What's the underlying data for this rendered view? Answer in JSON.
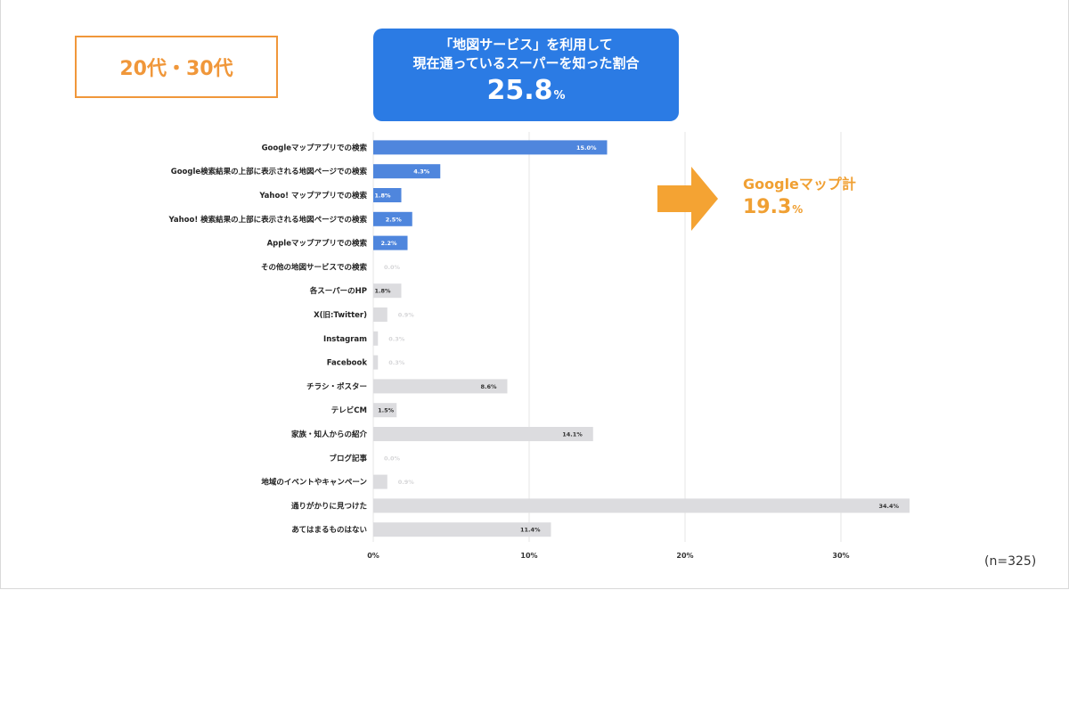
{
  "header": {
    "age_label": "20代・30代",
    "headline_line1": "「地図サービス」を利用して",
    "headline_line2": "現在通っているスーパーを知った割合",
    "headline_value": "25.8",
    "headline_unit": "%"
  },
  "callout": {
    "label": "Googleマップ計",
    "value": "19.3",
    "unit": "%"
  },
  "sample_size": "(n=325)",
  "colors": {
    "highlight_bar": "#4f86dd",
    "other_bar": "#dcdcdf",
    "accent_orange": "#f0973a",
    "headline_bg": "#2b7be4",
    "grid": "#e6e6e6"
  },
  "chart_data": {
    "type": "bar",
    "orientation": "horizontal",
    "categories": [
      "Googleマップアプリでの検索",
      "Google検索結果の上部に表示される地図ページでの検索",
      "Yahoo! マップアプリでの検索",
      "Yahoo! 検索結果の上部に表示される地図ページでの検索",
      "Appleマップアプリでの検索",
      "その他の地図サービスでの検索",
      "各スーパーのHP",
      "X(旧:Twitter)",
      "Instagram",
      "Facebook",
      "チラシ・ポスター",
      "テレビCM",
      "家族・知人からの紹介",
      "ブログ記事",
      "地域のイベントやキャンペーン",
      "通りがかりに見つけた",
      "あてはまるものはない"
    ],
    "values": [
      15.0,
      4.3,
      1.8,
      2.5,
      2.2,
      0.0,
      1.8,
      0.9,
      0.3,
      0.3,
      8.6,
      1.5,
      14.1,
      0.0,
      0.9,
      34.4,
      11.4
    ],
    "value_labels": [
      "15.0%",
      "4.3%",
      "1.8%",
      "2.5%",
      "2.2%",
      "0.0%",
      "1.8%",
      "0.9%",
      "0.3%",
      "0.3%",
      "8.6%",
      "1.5%",
      "14.1%",
      "0.0%",
      "0.9%",
      "34.4%",
      "11.4%"
    ],
    "highlighted": [
      true,
      true,
      true,
      true,
      true,
      false,
      false,
      false,
      false,
      false,
      false,
      false,
      false,
      false,
      false,
      false,
      false
    ],
    "xlim": [
      0,
      40
    ],
    "xticks": [
      "0%",
      "10%",
      "20%",
      "30%"
    ],
    "xtick_values": [
      0,
      10,
      20,
      30
    ],
    "grid": true,
    "legend": "none"
  }
}
